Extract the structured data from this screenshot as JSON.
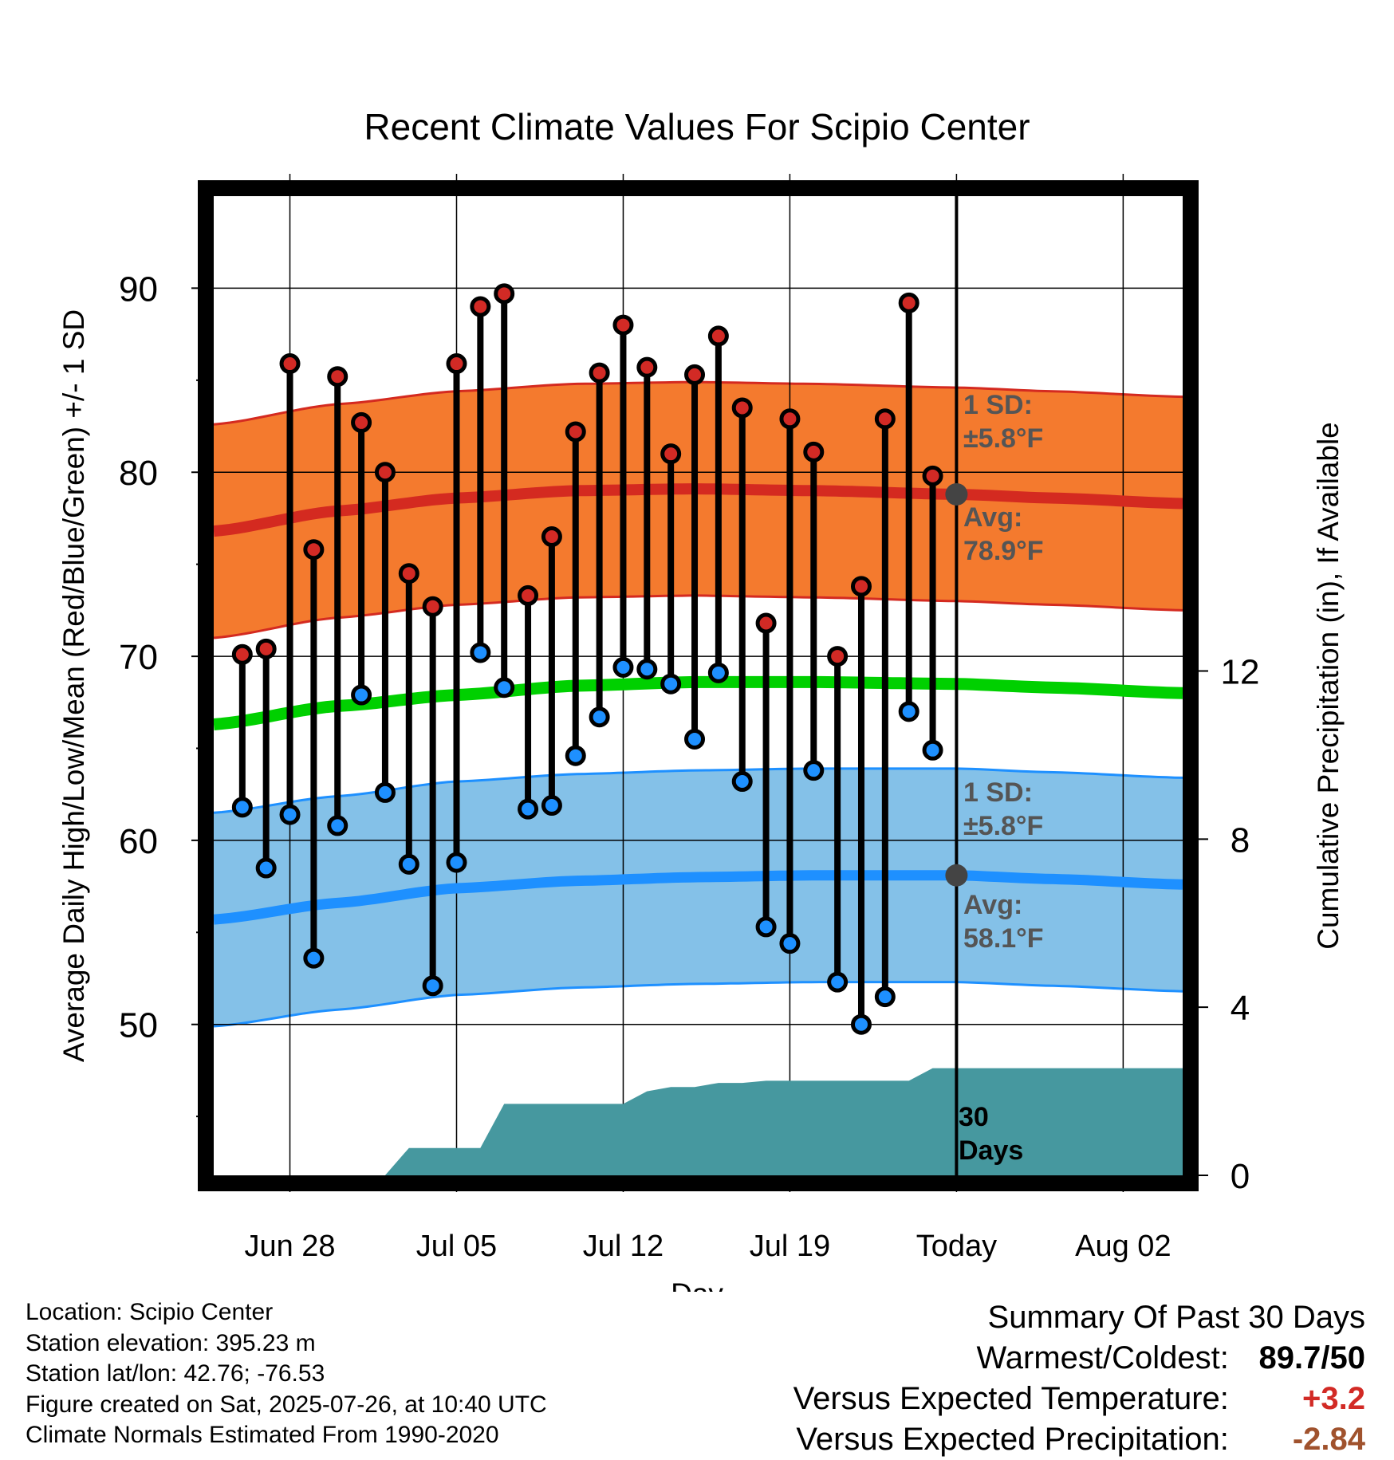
{
  "title": "Recent Climate Values For Scipio Center",
  "chart_data": {
    "type": "line",
    "title": "Recent Climate Values For Scipio Center",
    "xlabel": "Day",
    "ylabel": "Average Daily High/Low/Mean (Red/Blue/Green) +/- 1 SD",
    "y2label": "Cumulative Precipitation (in), If Available",
    "x_tick_labels": [
      "Jun 28",
      "Jul 05",
      "Jul 12",
      "Jul 19",
      "Today",
      "Aug 02"
    ],
    "x_tick_days": [
      3,
      10,
      17,
      24,
      31,
      38
    ],
    "xlim": [
      -0.2,
      40.5
    ],
    "ylim": [
      41.8,
      95
    ],
    "y_ticks": [
      50,
      60,
      70,
      80,
      90
    ],
    "y_minor_ticks": [
      45,
      55,
      65,
      75,
      85
    ],
    "y2lim": [
      0,
      23.3
    ],
    "y2_ticks": [
      0,
      4,
      8,
      12
    ],
    "today_day": 31,
    "days": [
      1,
      2,
      3,
      4,
      5,
      6,
      7,
      8,
      9,
      10,
      11,
      12,
      13,
      14,
      15,
      16,
      17,
      18,
      19,
      20,
      21,
      22,
      23,
      24,
      25,
      26,
      27,
      28,
      29,
      30
    ],
    "highs": [
      70.1,
      70.4,
      85.9,
      75.8,
      85.2,
      82.7,
      80.0,
      74.5,
      72.7,
      85.9,
      89.0,
      89.7,
      73.3,
      76.5,
      82.2,
      85.4,
      88.0,
      85.7,
      81.0,
      85.3,
      87.4,
      83.5,
      71.8,
      82.9,
      81.1,
      70.0,
      73.8,
      82.9,
      89.2,
      79.8
    ],
    "lows": [
      61.8,
      58.5,
      61.4,
      53.6,
      60.8,
      67.9,
      62.6,
      58.7,
      52.1,
      58.8,
      70.2,
      68.3,
      61.7,
      61.9,
      64.6,
      66.7,
      69.4,
      69.3,
      68.5,
      65.5,
      69.1,
      63.2,
      55.3,
      54.4,
      63.8,
      52.3,
      50.0,
      51.5,
      67.0,
      64.9
    ],
    "normal_high": {
      "x": [
        -0.2,
        5,
        10,
        15,
        20,
        25,
        31,
        35,
        40.5
      ],
      "avg": [
        76.8,
        77.9,
        78.6,
        79.0,
        79.1,
        79.0,
        78.8,
        78.6,
        78.3
      ],
      "sd": 5.8
    },
    "normal_mean": {
      "x": [
        -0.2,
        5,
        10,
        15,
        20,
        25,
        31,
        35,
        40.5
      ],
      "avg": [
        66.3,
        67.3,
        67.9,
        68.4,
        68.6,
        68.6,
        68.5,
        68.3,
        68.0
      ]
    },
    "normal_low": {
      "x": [
        -0.2,
        5,
        10,
        15,
        20,
        25,
        31,
        35,
        40.5
      ],
      "avg": [
        55.7,
        56.6,
        57.4,
        57.8,
        58.0,
        58.1,
        58.1,
        57.9,
        57.6
      ],
      "sd": 5.8
    },
    "precip": {
      "x": [
        -0.2,
        7,
        8,
        9,
        10,
        11,
        12,
        13,
        14,
        15,
        16,
        17,
        18,
        19,
        20,
        21,
        22,
        23,
        24,
        25,
        26,
        27,
        28,
        29,
        30,
        31,
        40.5
      ],
      "y": [
        0,
        0,
        0.65,
        0.65,
        0.65,
        0.65,
        1.7,
        1.7,
        1.7,
        1.7,
        1.7,
        1.7,
        2.0,
        2.1,
        2.1,
        2.2,
        2.2,
        2.25,
        2.25,
        2.25,
        2.25,
        2.25,
        2.25,
        2.25,
        2.55,
        2.55,
        2.55
      ]
    },
    "annotations": {
      "high_sd_label": "1 SD:",
      "high_sd_value": "±5.8°F",
      "high_avg_label": "Avg:",
      "high_avg_value": "78.9°F",
      "low_sd_label": "1 SD:",
      "low_sd_value": "±5.8°F",
      "low_avg_label": "Avg:",
      "low_avg_value": "58.1°F",
      "days_label_1": "30",
      "days_label_2": "Days"
    },
    "y_tick_labels": [
      "50",
      "60",
      "70",
      "80",
      "90"
    ],
    "y2_tick_labels": [
      "0",
      "4",
      "8",
      "12"
    ]
  },
  "colors": {
    "high_band": "#F47A2E",
    "high_line": "#D42A20",
    "mean_line": "#00D000",
    "low_band": "#84C1E8",
    "low_line": "#1E90FF",
    "precip": "#46989F",
    "high_dot": "#D22A25",
    "low_dot": "#1E90FF",
    "annotation": "#555555",
    "today_dot": "#444444",
    "anomaly_temp": "#D22A25",
    "anomaly_precip": "#A0522D"
  },
  "info": {
    "location": "Location: Scipio Center",
    "elevation": "Station elevation: 395.23 m",
    "latlon": "Station lat/lon: 42.76; -76.53",
    "created": "Figure created on Sat, 2025-07-26, at 10:40 UTC",
    "normals": "Climate Normals Estimated From 1990-2020"
  },
  "summary": {
    "title": "Summary Of Past 30 Days",
    "warmest_coldest_label": "Warmest/Coldest:",
    "warmest_coldest_value": "89.7/50",
    "temp_label": "Versus Expected Temperature:",
    "temp_value": "+3.2",
    "precip_label": "Versus Expected Precipitation:",
    "precip_value": "-2.84"
  }
}
